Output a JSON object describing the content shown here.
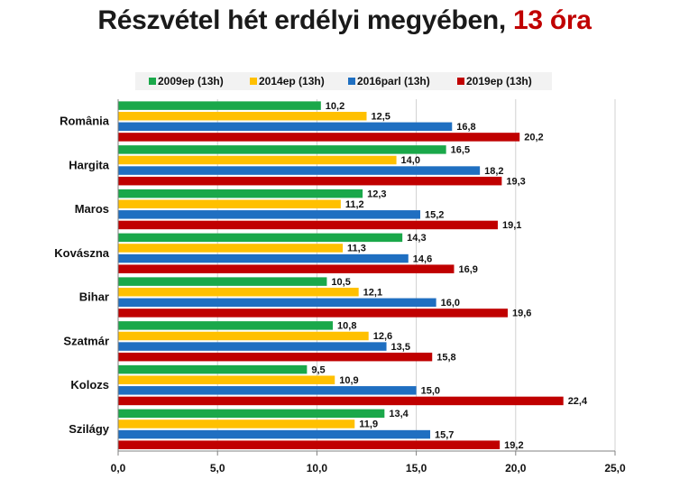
{
  "title": {
    "main": "Részvétel hét erdélyi megyében,",
    "accent": "13 óra"
  },
  "colors": {
    "series": [
      "#1aa84a",
      "#ffc000",
      "#1f6fc1",
      "#c00000"
    ],
    "grid": "#d0d0d0",
    "legend_bg": "#f2f2f2"
  },
  "chart_data": {
    "type": "bar",
    "orientation": "horizontal",
    "categories": [
      "România",
      "Hargita",
      "Maros",
      "Kovászna",
      "Bihar",
      "Szatmár",
      "Kolozs",
      "Szilágy"
    ],
    "series": [
      {
        "name": "2009ep (13h)",
        "values": [
          10.2,
          16.5,
          12.3,
          14.3,
          10.5,
          10.8,
          9.5,
          13.4
        ],
        "labels": [
          "10,2",
          "16,5",
          "12,3",
          "14,3",
          "10,5",
          "10,8",
          "9,5",
          "13,4"
        ]
      },
      {
        "name": "2014ep (13h)",
        "values": [
          12.5,
          14.0,
          11.2,
          11.3,
          12.1,
          12.6,
          10.9,
          11.9
        ],
        "labels": [
          "12,5",
          "14,0",
          "11,2",
          "11,3",
          "12,1",
          "12,6",
          "10,9",
          "11,9"
        ]
      },
      {
        "name": "2016parl (13h)",
        "values": [
          16.8,
          18.2,
          15.2,
          14.6,
          16.0,
          13.5,
          15.0,
          15.7
        ],
        "labels": [
          "16,8",
          "18,2",
          "15,2",
          "14,6",
          "16,0",
          "13,5",
          "15,0",
          "15,7"
        ]
      },
      {
        "name": "2019ep (13h)",
        "values": [
          20.2,
          19.3,
          19.1,
          16.9,
          19.6,
          15.8,
          22.4,
          19.2
        ],
        "labels": [
          "20,2",
          "19,3",
          "19,1",
          "16,9",
          "19,6",
          "15,8",
          "22,4",
          "19,2"
        ]
      }
    ],
    "xlim": [
      0,
      25
    ],
    "xticks": [
      0,
      5,
      10,
      15,
      20,
      25
    ],
    "xtick_labels": [
      "0,0",
      "5,0",
      "10,0",
      "15,0",
      "20,0",
      "25,0"
    ],
    "grid": true,
    "legend_position": "top"
  }
}
